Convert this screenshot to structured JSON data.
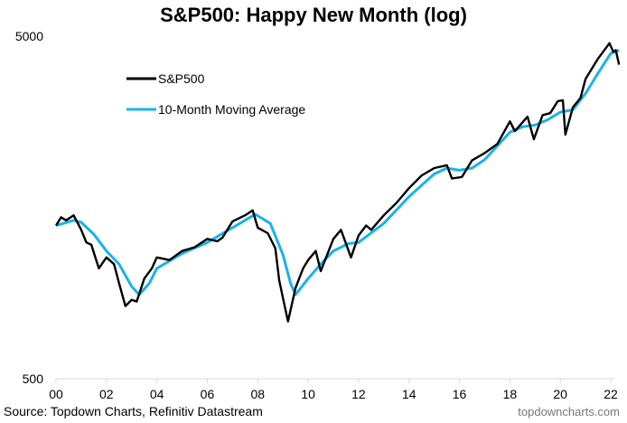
{
  "chart_data": {
    "type": "line",
    "title": "S&P500: Happy New Month (log)",
    "xlabel": "",
    "ylabel": "",
    "yscale": "log",
    "ylim": [
      500,
      5000
    ],
    "xlim": [
      2000,
      2022.4
    ],
    "y_ticks": [
      "5000",
      "500"
    ],
    "y_tick_values": [
      5000,
      500
    ],
    "x_ticks": [
      "00",
      "02",
      "04",
      "06",
      "08",
      "10",
      "12",
      "14",
      "16",
      "18",
      "20",
      "22"
    ],
    "x_tick_values": [
      2000,
      2002,
      2004,
      2006,
      2008,
      2010,
      2012,
      2014,
      2016,
      2018,
      2020,
      2022
    ],
    "legend_placement": "top-left",
    "grid": false,
    "series": [
      {
        "name": "S&P500",
        "color": "#000000",
        "x": [
          2000.0,
          2000.2,
          2000.4,
          2000.7,
          2001.0,
          2001.2,
          2001.4,
          2001.7,
          2002.0,
          2002.3,
          2002.5,
          2002.75,
          2003.0,
          2003.2,
          2003.5,
          2003.8,
          2004.0,
          2004.5,
          2005.0,
          2005.5,
          2006.0,
          2006.4,
          2006.6,
          2007.0,
          2007.5,
          2007.8,
          2008.0,
          2008.4,
          2008.7,
          2008.85,
          2009.0,
          2009.2,
          2009.5,
          2009.8,
          2010.0,
          2010.3,
          2010.5,
          2011.0,
          2011.3,
          2011.7,
          2012.0,
          2012.3,
          2012.5,
          2013.0,
          2013.5,
          2014.0,
          2014.5,
          2015.0,
          2015.5,
          2015.7,
          2016.1,
          2016.5,
          2017.0,
          2017.5,
          2018.0,
          2018.2,
          2018.7,
          2018.95,
          2019.3,
          2019.6,
          2019.9,
          2020.1,
          2020.2,
          2020.5,
          2020.8,
          2021.0,
          2021.5,
          2021.95,
          2022.1,
          2022.2,
          2022.33
        ],
        "values": [
          1400,
          1480,
          1450,
          1500,
          1360,
          1250,
          1230,
          1050,
          1130,
          1080,
          950,
          815,
          850,
          840,
          980,
          1050,
          1130,
          1110,
          1180,
          1210,
          1280,
          1260,
          1290,
          1440,
          1500,
          1550,
          1380,
          1330,
          1200,
          970,
          860,
          735,
          920,
          1050,
          1110,
          1180,
          1030,
          1280,
          1360,
          1130,
          1310,
          1400,
          1360,
          1500,
          1630,
          1800,
          1960,
          2060,
          2100,
          1920,
          1940,
          2170,
          2280,
          2420,
          2820,
          2640,
          2910,
          2500,
          2940,
          2980,
          3230,
          3250,
          2580,
          3100,
          3300,
          3750,
          4300,
          4770,
          4500,
          4550,
          4130
        ]
      },
      {
        "name": "10-Month Moving Average",
        "color": "#1ab2ea",
        "x": [
          2000.0,
          2000.7,
          2001.0,
          2001.5,
          2002.0,
          2002.5,
          2003.0,
          2003.3,
          2003.7,
          2004.0,
          2005.0,
          2006.0,
          2007.0,
          2007.9,
          2008.5,
          2009.0,
          2009.3,
          2009.5,
          2010.0,
          2010.5,
          2011.0,
          2011.6,
          2012.0,
          2013.0,
          2014.0,
          2015.0,
          2015.5,
          2016.0,
          2016.5,
          2017.0,
          2018.0,
          2018.5,
          2019.0,
          2019.5,
          2020.0,
          2020.5,
          2021.0,
          2021.5,
          2022.0,
          2022.33
        ],
        "values": [
          1400,
          1450,
          1430,
          1320,
          1180,
          1080,
          930,
          880,
          950,
          1050,
          1160,
          1250,
          1380,
          1510,
          1420,
          1150,
          950,
          880,
          980,
          1080,
          1180,
          1240,
          1250,
          1420,
          1700,
          1980,
          2060,
          2030,
          2060,
          2180,
          2620,
          2720,
          2750,
          2850,
          3000,
          3050,
          3400,
          3900,
          4450,
          4550
        ]
      }
    ],
    "source": "Source: Topdown Charts, Refinitiv Datastream",
    "site": "topdowncharts.com"
  }
}
